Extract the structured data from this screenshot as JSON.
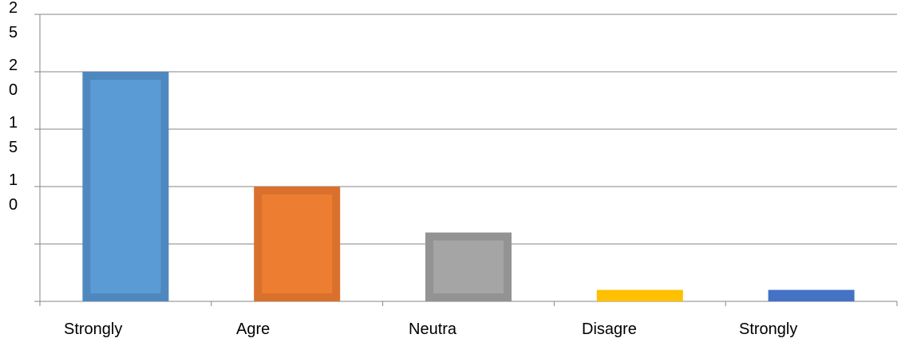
{
  "chart_data": {
    "type": "bar",
    "categories": [
      "Strongly",
      "Agre",
      "Neutra",
      "Disagre",
      "Strongly"
    ],
    "values": [
      20,
      10,
      6,
      1,
      1
    ],
    "colors": [
      "#5b9bd5",
      "#ed7d31",
      "#a5a5a5",
      "#ffc000",
      "#4472c4"
    ],
    "border_colors": [
      "#4e88bf",
      "#d9712c",
      "#939393",
      "#e0aa00",
      "#3d67b4"
    ],
    "ylim": [
      0,
      25
    ],
    "yticks": [
      0,
      5,
      10,
      15,
      20,
      25
    ],
    "ytick_labels": [
      "",
      "",
      "1 0",
      "1 5",
      "2 0",
      "2 5"
    ],
    "grid": true,
    "legend": "none",
    "title": "",
    "xlabel": "",
    "ylabel": ""
  }
}
